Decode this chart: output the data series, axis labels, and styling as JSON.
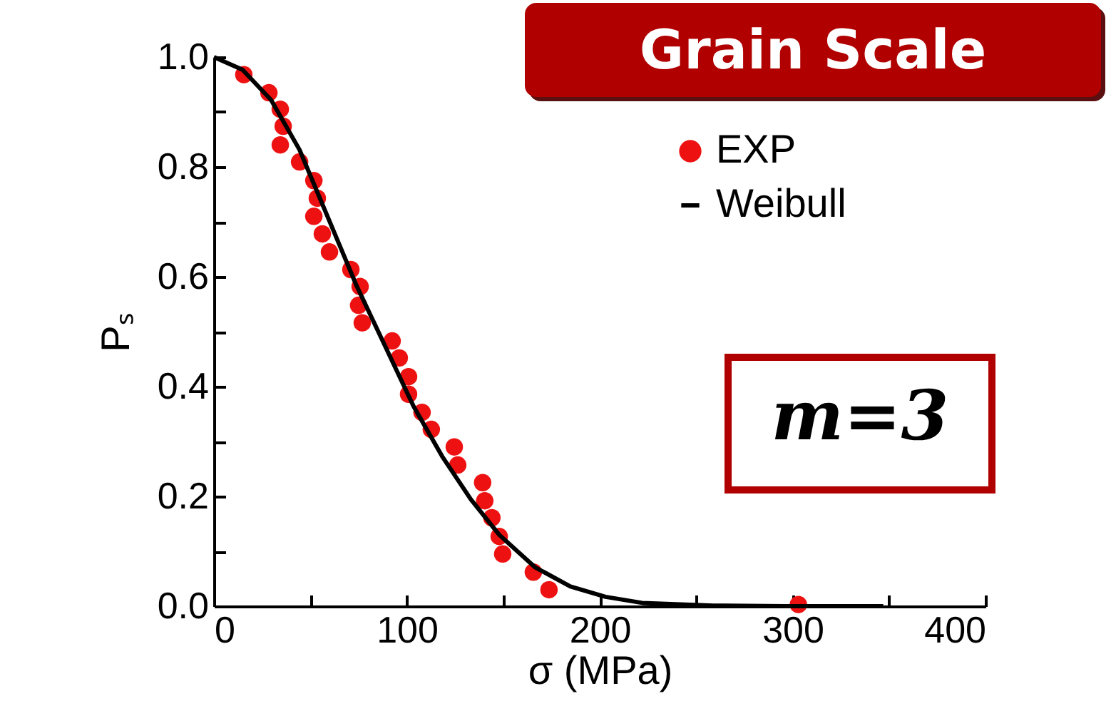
{
  "chart_data": {
    "type": "scatter",
    "xlabel": "σ (MPa)",
    "ylabel": "Pₛ",
    "annotations": [
      "Grain Scale",
      "m=3"
    ],
    "xlim": [
      0,
      400
    ],
    "ylim": [
      0,
      1
    ],
    "xticks": [
      0,
      {
        "value": 50,
        "label": null
      },
      100,
      {
        "value": 150,
        "label": null
      },
      200,
      {
        "value": 250,
        "label": null
      },
      300,
      {
        "value": 350,
        "label": null
      },
      400
    ],
    "yticks": [
      "0.0",
      {
        "value": 0.1,
        "label": null
      },
      {
        "value": 0.2,
        "label": "0.2"
      },
      {
        "value": 0.3,
        "label": null
      },
      {
        "value": 0.4,
        "label": "0.4"
      },
      {
        "value": 0.5,
        "label": null
      },
      {
        "value": 0.6,
        "label": "0.6"
      },
      {
        "value": 0.7,
        "label": null
      },
      {
        "value": 0.8,
        "label": "0.8"
      },
      {
        "value": 0.9,
        "label": null
      },
      {
        "value": 1,
        "label": "1.0"
      }
    ],
    "grid": false,
    "legend": "top right",
    "series": [
      {
        "name": "EXP",
        "marker": "circle",
        "color": "#ee1111",
        "x": [
          15.5,
          28.5,
          34.4,
          35.9,
          34.4,
          44.4,
          51.8,
          53.6,
          51.8,
          56.2,
          59.9,
          71.0,
          75.8,
          75.0,
          76.9,
          92.4,
          96.1,
          100.9,
          100.9,
          107.9,
          112.7,
          124.6,
          126.4,
          139.3,
          140.4,
          144.1,
          147.9,
          149.7,
          165.6,
          173.7,
          303
        ],
        "values": [
          0.968,
          0.935,
          0.905,
          0.874,
          0.84,
          0.809,
          0.775,
          0.743,
          0.71,
          0.678,
          0.645,
          0.613,
          0.582,
          0.548,
          0.516,
          0.483,
          0.452,
          0.418,
          0.386,
          0.353,
          0.322,
          0.29,
          0.257,
          0.225,
          0.192,
          0.161,
          0.127,
          0.095,
          0.062,
          0.03,
          0.003
        ]
      },
      {
        "name": "Weibull",
        "type": "line",
        "color": "#000000",
        "line_style": "solid",
        "x": [
          0,
          14.8,
          29.6,
          44.4,
          59.1,
          73.9,
          88.7,
          103.5,
          118.3,
          133.1,
          147.9,
          166.4,
          184.8,
          203,
          222,
          259,
          296,
          347
        ],
        "values": [
          1.0,
          0.977,
          0.922,
          0.831,
          0.708,
          0.584,
          0.474,
          0.364,
          0.273,
          0.195,
          0.13,
          0.071,
          0.036,
          0.017,
          0.006,
          0.001,
          0,
          0
        ]
      }
    ]
  }
}
